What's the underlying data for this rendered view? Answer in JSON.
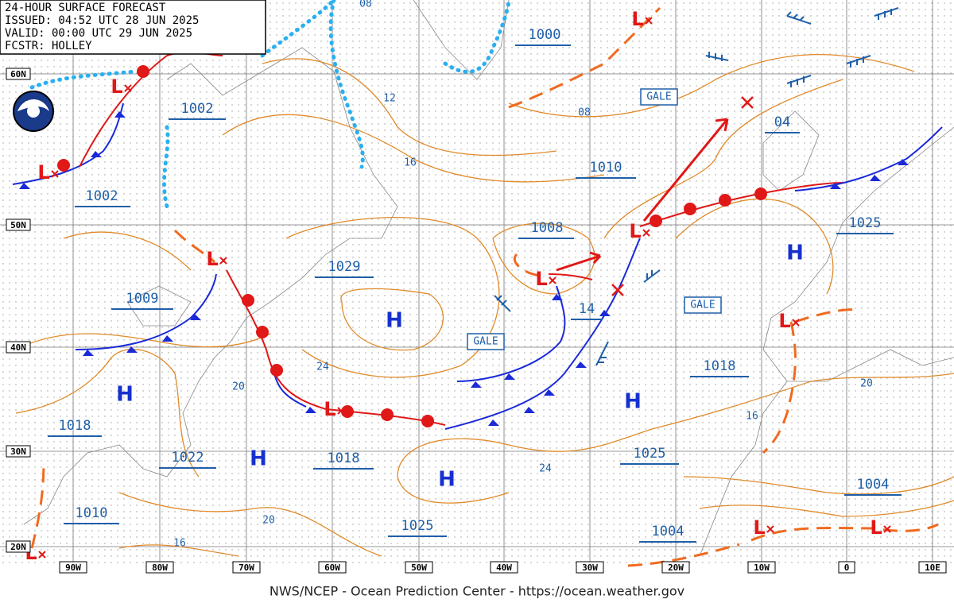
{
  "header": {
    "lines": [
      "24-HOUR SURFACE FORECAST",
      "ISSUED: 04:52 UTC 28 JUN 2025",
      "VALID: 00:00 UTC 29 JUN 2025",
      "FCSTR: HOLLEY"
    ]
  },
  "logo_text": "NOAA",
  "pressure_labels": [
    "1000",
    "1002",
    "1002",
    "1010",
    "1008",
    "1029",
    "1009",
    "04",
    "1025",
    "14",
    "1018",
    "1018",
    "1022",
    "1018",
    "1025",
    "1004",
    "1010",
    "1025",
    "1004"
  ],
  "isobar_labels": [
    "08",
    "12",
    "16",
    "08",
    "24",
    "20",
    "20",
    "16",
    "16",
    "20",
    "24"
  ],
  "gale_labels": [
    "GALE",
    "GALE",
    "GALE"
  ],
  "high_centers": [
    "H",
    "H",
    "H",
    "H",
    "H",
    "H"
  ],
  "low_centers": [
    "L",
    "L",
    "L",
    "L",
    "L",
    "L",
    "L",
    "L",
    "L",
    "L",
    "L"
  ],
  "latitude_labels": [
    "60N",
    "50N",
    "40N",
    "30N",
    "20N"
  ],
  "longitude_labels": [
    "90W",
    "80W",
    "70W",
    "60W",
    "50W",
    "40W",
    "30W",
    "20W",
    "10W",
    "0",
    "10E"
  ],
  "footer": "NWS/NCEP - Ocean Prediction Center - https://ocean.weather.gov"
}
